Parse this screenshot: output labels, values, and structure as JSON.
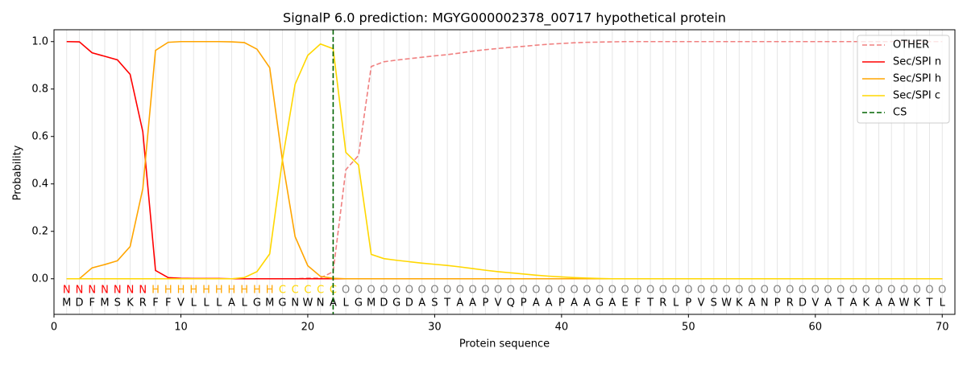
{
  "chart_data": {
    "type": "line",
    "title": "SignalP 6.0 prediction: MGYG000002378_00717 hypothetical protein",
    "x_label": "Protein sequence",
    "y_label": "Probability",
    "x": [
      1,
      2,
      3,
      4,
      5,
      6,
      7,
      8,
      9,
      10,
      11,
      12,
      13,
      14,
      15,
      16,
      17,
      18,
      19,
      20,
      21,
      22,
      23,
      24,
      25,
      26,
      27,
      28,
      29,
      30,
      31,
      32,
      33,
      34,
      35,
      36,
      37,
      38,
      39,
      40,
      41,
      42,
      43,
      44,
      45,
      46,
      47,
      48,
      49,
      50,
      51,
      52,
      53,
      54,
      55,
      56,
      57,
      58,
      59,
      60,
      61,
      62,
      63,
      64,
      65,
      66,
      67,
      68,
      69,
      70
    ],
    "sequence": [
      "M",
      "D",
      "F",
      "M",
      "S",
      "K",
      "R",
      "F",
      "F",
      "V",
      "L",
      "L",
      "L",
      "A",
      "L",
      "G",
      "M",
      "G",
      "N",
      "W",
      "N",
      "A",
      "L",
      "G",
      "M",
      "D",
      "G",
      "D",
      "A",
      "S",
      "T",
      "A",
      "A",
      "P",
      "V",
      "Q",
      "P",
      "A",
      "A",
      "P",
      "A",
      "A",
      "G",
      "A",
      "E",
      "F",
      "T",
      "R",
      "L",
      "P",
      "V",
      "S",
      "W",
      "K",
      "A",
      "N",
      "P",
      "R",
      "D",
      "V",
      "A",
      "T",
      "A",
      "K",
      "A",
      "A",
      "W",
      "K",
      "T",
      "L"
    ],
    "labels": [
      "N",
      "N",
      "N",
      "N",
      "N",
      "N",
      "N",
      "H",
      "H",
      "H",
      "H",
      "H",
      "H",
      "H",
      "H",
      "H",
      "H",
      "C",
      "C",
      "C",
      "C",
      "C",
      "O",
      "O",
      "O",
      "O",
      "O",
      "O",
      "O",
      "O",
      "O",
      "O",
      "O",
      "O",
      "O",
      "O",
      "O",
      "O",
      "O",
      "O",
      "O",
      "O",
      "O",
      "O",
      "O",
      "O",
      "O",
      "O",
      "O",
      "O",
      "O",
      "O",
      "O",
      "O",
      "O",
      "O",
      "O",
      "O",
      "O",
      "O",
      "O",
      "O",
      "O",
      "O",
      "O",
      "O",
      "O",
      "O",
      "O",
      "O"
    ],
    "label_colors": {
      "N": "#ff0000",
      "H": "#ffa500",
      "C": "#ffd700",
      "O": "#808080"
    },
    "series": [
      {
        "name": "OTHER",
        "color": "#f08080",
        "dash": true,
        "values": [
          0,
          0,
          0,
          0,
          0,
          0,
          0,
          0,
          0,
          0,
          0,
          0,
          0,
          0,
          0,
          0,
          0,
          0,
          0,
          0.003,
          0.003,
          0.03,
          0.46,
          0.52,
          0.895,
          0.915,
          0.922,
          0.928,
          0.934,
          0.94,
          0.945,
          0.952,
          0.96,
          0.966,
          0.971,
          0.976,
          0.98,
          0.985,
          0.989,
          0.992,
          0.995,
          0.997,
          0.998,
          0.999,
          1,
          1,
          1,
          1,
          1,
          1,
          1,
          1,
          1,
          1,
          1,
          1,
          1,
          1,
          1,
          1,
          1,
          1,
          1,
          1,
          1,
          1,
          1,
          1,
          1,
          1
        ]
      },
      {
        "name": "Sec/SPI n",
        "color": "#ff0000",
        "values": [
          1.0,
          0.999,
          0.953,
          0.938,
          0.923,
          0.862,
          0.62,
          0.035,
          0.005,
          0.002,
          0.001,
          0.001,
          0.001,
          0,
          0,
          0,
          0,
          0,
          0,
          0,
          0,
          0,
          0,
          0,
          0,
          0,
          0,
          0,
          0,
          0,
          0,
          0,
          0,
          0,
          0,
          0,
          0,
          0,
          0,
          0,
          0,
          0,
          0,
          0,
          0,
          0,
          0,
          0,
          0,
          0,
          0,
          0,
          0,
          0,
          0,
          0,
          0,
          0,
          0,
          0,
          0,
          0,
          0,
          0,
          0,
          0,
          0,
          0,
          0,
          0
        ]
      },
      {
        "name": "Sec/SPI h",
        "color": "#ffa500",
        "values": [
          0,
          0,
          0.046,
          0.06,
          0.076,
          0.136,
          0.38,
          0.963,
          0.997,
          1.0,
          1.0,
          1.0,
          1.0,
          0.999,
          0.996,
          0.968,
          0.89,
          0.5,
          0.178,
          0.055,
          0.01,
          0.002,
          0,
          0,
          0,
          0,
          0,
          0,
          0,
          0,
          0,
          0,
          0,
          0,
          0,
          0,
          0,
          0,
          0,
          0,
          0,
          0,
          0,
          0,
          0,
          0,
          0,
          0,
          0,
          0,
          0,
          0,
          0,
          0,
          0,
          0,
          0,
          0,
          0,
          0,
          0,
          0,
          0,
          0,
          0,
          0,
          0,
          0,
          0,
          0
        ]
      },
      {
        "name": "Sec/SPI c",
        "color": "#ffd700",
        "values": [
          0,
          0,
          0,
          0,
          0,
          0,
          0,
          0,
          0,
          0,
          0,
          0,
          0,
          0,
          0.005,
          0.03,
          0.105,
          0.5,
          0.82,
          0.942,
          0.99,
          0.97,
          0.533,
          0.48,
          0.103,
          0.085,
          0.078,
          0.072,
          0.066,
          0.061,
          0.056,
          0.05,
          0.043,
          0.036,
          0.03,
          0.025,
          0.02,
          0.015,
          0.011,
          0.008,
          0.005,
          0.003,
          0.001,
          0,
          0,
          0,
          0,
          0,
          0,
          0,
          0,
          0,
          0,
          0,
          0,
          0,
          0,
          0,
          0,
          0,
          0,
          0,
          0,
          0,
          0,
          0,
          0,
          0,
          0,
          0
        ]
      }
    ],
    "cleavage_site": {
      "name": "CS",
      "x": 22,
      "color": "#006400"
    },
    "xlim": [
      0,
      71
    ],
    "ylim": [
      -0.15,
      1.05
    ],
    "xticks": [
      0,
      10,
      20,
      30,
      40,
      50,
      60,
      70
    ],
    "yticks": [
      {
        "value": 0,
        "label": "0.0"
      },
      {
        "value": 0.2,
        "label": "0.2"
      },
      {
        "value": 0.4,
        "label": "0.4"
      },
      {
        "value": 0.6,
        "label": "0.6"
      },
      {
        "value": 0.8,
        "label": "0.8"
      },
      {
        "value": 1.0,
        "label": "1.0"
      }
    ],
    "position_grid": true,
    "legend": "upper right"
  }
}
